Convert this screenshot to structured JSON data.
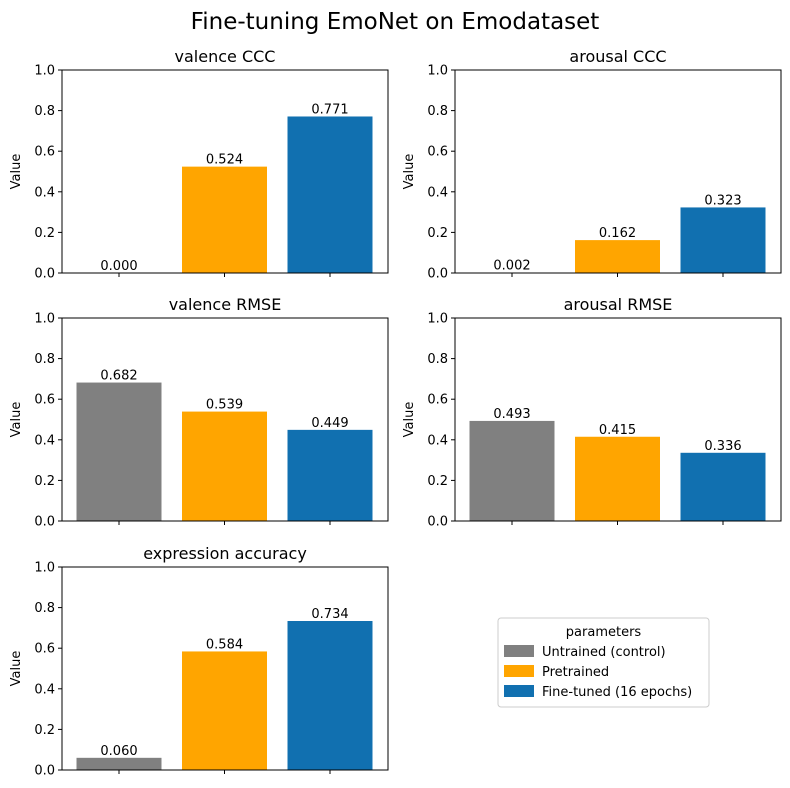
{
  "figure": {
    "title": "Fine-tuning EmoNet on Emodataset"
  },
  "legend": {
    "title": "parameters",
    "entries": [
      {
        "label": "Untrained (control)",
        "color": "#808080"
      },
      {
        "label": "Pretrained",
        "color": "#ffa500"
      },
      {
        "label": "Fine-tuned (16 epochs)",
        "color": "#1170b0"
      }
    ]
  },
  "chart_data": [
    {
      "type": "bar",
      "title": "valence CCC",
      "ylabel": "Value",
      "ylim": [
        0,
        1
      ],
      "yticks": [
        "0.0",
        "0.2",
        "0.4",
        "0.6",
        "0.8",
        "1.0"
      ],
      "categories": [
        "Untrained (control)",
        "Pretrained",
        "Fine-tuned (16 epochs)"
      ],
      "values": [
        0.0,
        0.524,
        0.771
      ],
      "labels": [
        "0.000",
        "0.524",
        "0.771"
      ]
    },
    {
      "type": "bar",
      "title": "arousal CCC",
      "ylabel": "Value",
      "ylim": [
        0,
        1
      ],
      "yticks": [
        "0.0",
        "0.2",
        "0.4",
        "0.6",
        "0.8",
        "1.0"
      ],
      "categories": [
        "Untrained (control)",
        "Pretrained",
        "Fine-tuned (16 epochs)"
      ],
      "values": [
        0.002,
        0.162,
        0.323
      ],
      "labels": [
        "0.002",
        "0.162",
        "0.323"
      ]
    },
    {
      "type": "bar",
      "title": "valence RMSE",
      "ylabel": "Value",
      "ylim": [
        0,
        1
      ],
      "yticks": [
        "0.0",
        "0.2",
        "0.4",
        "0.6",
        "0.8",
        "1.0"
      ],
      "categories": [
        "Untrained (control)",
        "Pretrained",
        "Fine-tuned (16 epochs)"
      ],
      "values": [
        0.682,
        0.539,
        0.449
      ],
      "labels": [
        "0.682",
        "0.539",
        "0.449"
      ]
    },
    {
      "type": "bar",
      "title": "arousal RMSE",
      "ylabel": "Value",
      "ylim": [
        0,
        1
      ],
      "yticks": [
        "0.0",
        "0.2",
        "0.4",
        "0.6",
        "0.8",
        "1.0"
      ],
      "categories": [
        "Untrained (control)",
        "Pretrained",
        "Fine-tuned (16 epochs)"
      ],
      "values": [
        0.493,
        0.415,
        0.336
      ],
      "labels": [
        "0.493",
        "0.415",
        "0.336"
      ]
    },
    {
      "type": "bar",
      "title": "expression accuracy",
      "ylabel": "Value",
      "ylim": [
        0,
        1
      ],
      "yticks": [
        "0.0",
        "0.2",
        "0.4",
        "0.6",
        "0.8",
        "1.0"
      ],
      "categories": [
        "Untrained (control)",
        "Pretrained",
        "Fine-tuned (16 epochs)"
      ],
      "values": [
        0.06,
        0.584,
        0.734
      ],
      "labels": [
        "0.060",
        "0.584",
        "0.734"
      ]
    }
  ]
}
